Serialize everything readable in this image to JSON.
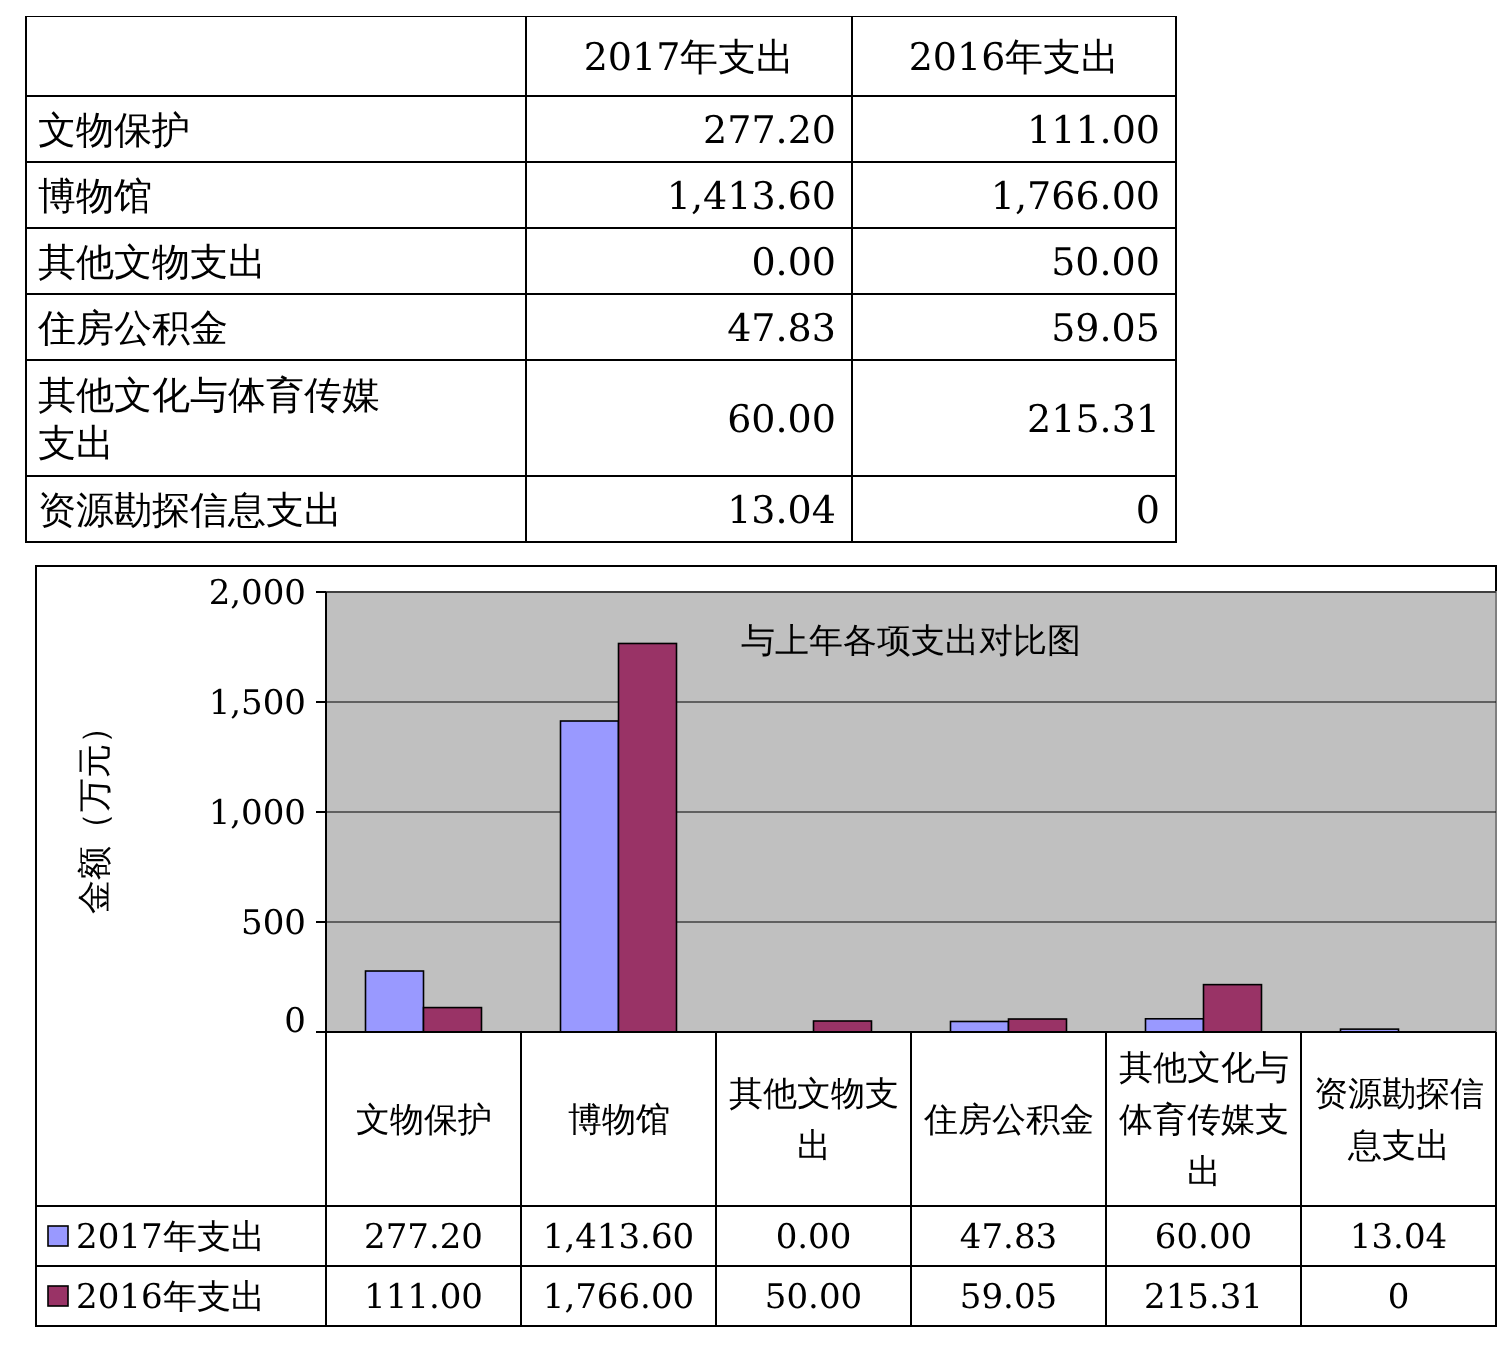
{
  "chart_data": [
    {
      "type": "other",
      "categories": [
        "文物保护",
        "博物馆",
        "其他文物支出",
        "住房公积金",
        "其他文化与体育传媒支出",
        "资源勘探信息支出"
      ],
      "series": [
        {
          "name": "2017年支出",
          "values": [
            277.2,
            1413.6,
            0,
            47.83,
            60,
            13.04
          ],
          "value_labels": [
            "277.20",
            "1,413.60",
            "0.00",
            "47.83",
            "60.00",
            "13.04"
          ]
        },
        {
          "name": "2016年支出",
          "values": [
            111,
            1766,
            50,
            59.05,
            215.31,
            0
          ],
          "value_labels": [
            "111.00",
            "1,766.00",
            "50.00",
            "59.05",
            "215.31",
            "0"
          ]
        }
      ]
    },
    {
      "type": "bar",
      "title": "与上年各项支出对比图",
      "ylabel": "金额（万元）",
      "categories": [
        "文物保护",
        "博物馆",
        "其他文物支出",
        "住房公积金",
        "其他文化与体育传媒支出",
        "资源勘探信息支出"
      ],
      "series": [
        {
          "name": "2017年支出",
          "color": "#9999ff",
          "values": [
            277.2,
            1413.6,
            0,
            47.83,
            60,
            13.04
          ],
          "value_labels": [
            "277.20",
            "1,413.60",
            "0.00",
            "47.83",
            "60.00",
            "13.04"
          ]
        },
        {
          "name": "2016年支出",
          "color": "#993366",
          "values": [
            111,
            1766,
            50,
            59.05,
            215.31,
            0
          ],
          "value_labels": [
            "111.00",
            "1,766.00",
            "50.00",
            "59.05",
            "215.31",
            "0"
          ]
        }
      ],
      "ylim": [
        0,
        2000
      ],
      "yticks": [
        0,
        {
          "value": 500,
          "label": "500"
        },
        {
          "value": 1000,
          "label": "1,000"
        },
        {
          "value": 1500,
          "label": "1,500"
        },
        {
          "value": 2000,
          "label": "2,000"
        }
      ],
      "grid": "y",
      "legend": "bottom"
    }
  ]
}
